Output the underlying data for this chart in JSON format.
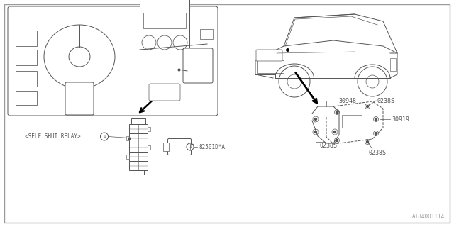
{
  "bg_color": "#ffffff",
  "border_color": "#999999",
  "line_color": "#555555",
  "fig_width": 6.4,
  "fig_height": 3.2,
  "dpi": 100,
  "labels": {
    "self_shut_relay": "<SELF SHUT RELAY>",
    "circle_1a": "1",
    "part_82501": "82501D*A",
    "circle_1b": "1",
    "part_30948": "30948",
    "part_0238s_1": "0238S",
    "part_30919": "30919",
    "part_0238s_2": "0238S",
    "part_0238s_3": "0238S",
    "footer": "A184001114"
  }
}
